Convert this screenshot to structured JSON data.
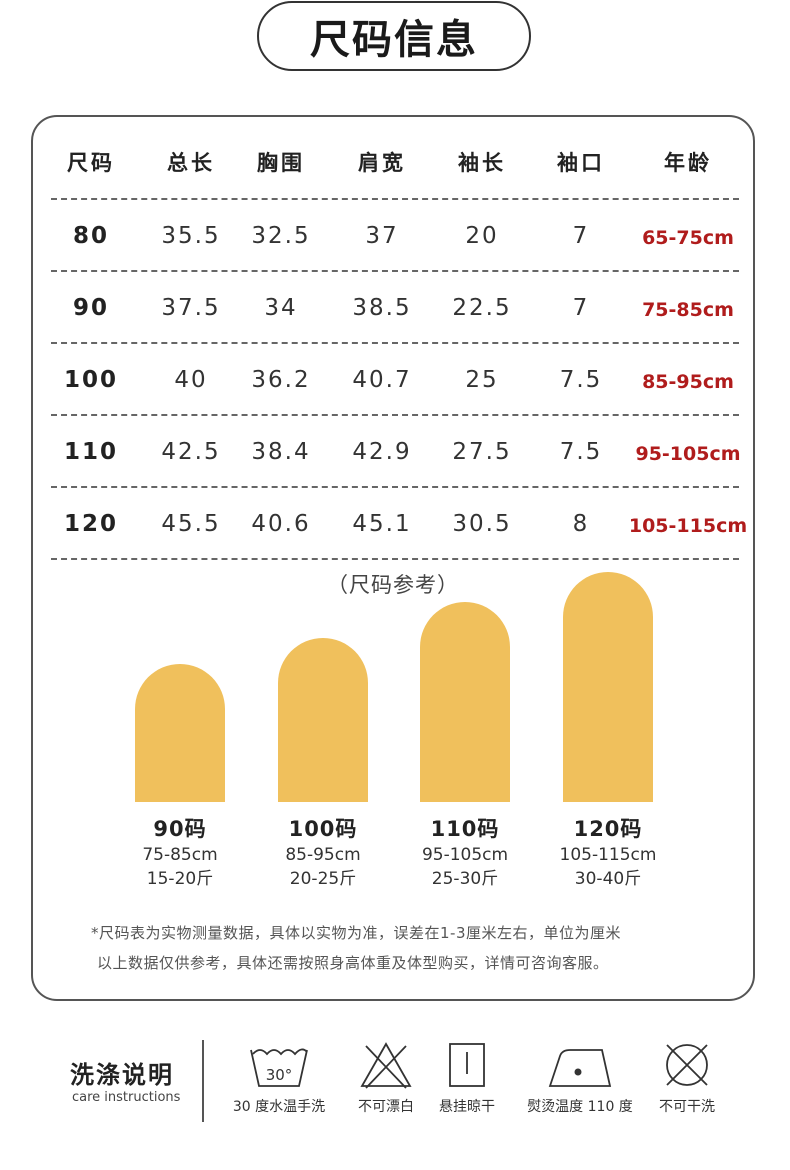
{
  "title": "尺码信息",
  "table": {
    "headers": [
      "尺码",
      "总长",
      "胸围",
      "肩宽",
      "袖长",
      "袖口",
      "年龄"
    ],
    "rows": [
      [
        "80",
        "35.5",
        "32.5",
        "37",
        "20",
        "7",
        "65-75cm"
      ],
      [
        "90",
        "37.5",
        "34",
        "38.5",
        "22.5",
        "7",
        "75-85cm"
      ],
      [
        "100",
        "40",
        "36.2",
        "40.7",
        "25",
        "7.5",
        "85-95cm"
      ],
      [
        "110",
        "42.5",
        "38.4",
        "42.9",
        "27.5",
        "7.5",
        "95-105cm"
      ],
      [
        "120",
        "45.5",
        "40.6",
        "45.1",
        "30.5",
        "8",
        "105-115cm"
      ]
    ]
  },
  "chart": {
    "title": "（尺码参考）",
    "bars": [
      {
        "name": "90码",
        "height": "75-85cm",
        "weight": "15-20斤"
      },
      {
        "name": "100码",
        "height": "85-95cm",
        "weight": "20-25斤"
      },
      {
        "name": "110码",
        "height": "95-105cm",
        "weight": "25-30斤"
      },
      {
        "name": "120码",
        "height": "105-115cm",
        "weight": "30-40斤"
      }
    ],
    "bar_color": "#f0c05c"
  },
  "notes": [
    "*尺码表为实物测量数据，具体以实物为准，误差在1-3厘米左右，单位为厘米",
    "以上数据仅供参考，具体还需按照身高体重及体型购买，详情可咨询客服。"
  ],
  "care": {
    "title": "洗涤说明",
    "subtitle": "care instructions",
    "wash_temp": "30°",
    "items": [
      {
        "icon": "hand-wash-30-icon",
        "label": "30 度水温手洗"
      },
      {
        "icon": "no-bleach-icon",
        "label": "不可漂白"
      },
      {
        "icon": "line-dry-icon",
        "label": "悬挂晾干"
      },
      {
        "icon": "iron-110-icon",
        "label": "熨烫温度 110 度"
      },
      {
        "icon": "no-dry-clean-icon",
        "label": "不可干洗"
      }
    ]
  },
  "colors": {
    "accent_red": "#b01c1c",
    "bar": "#f0c05c"
  }
}
